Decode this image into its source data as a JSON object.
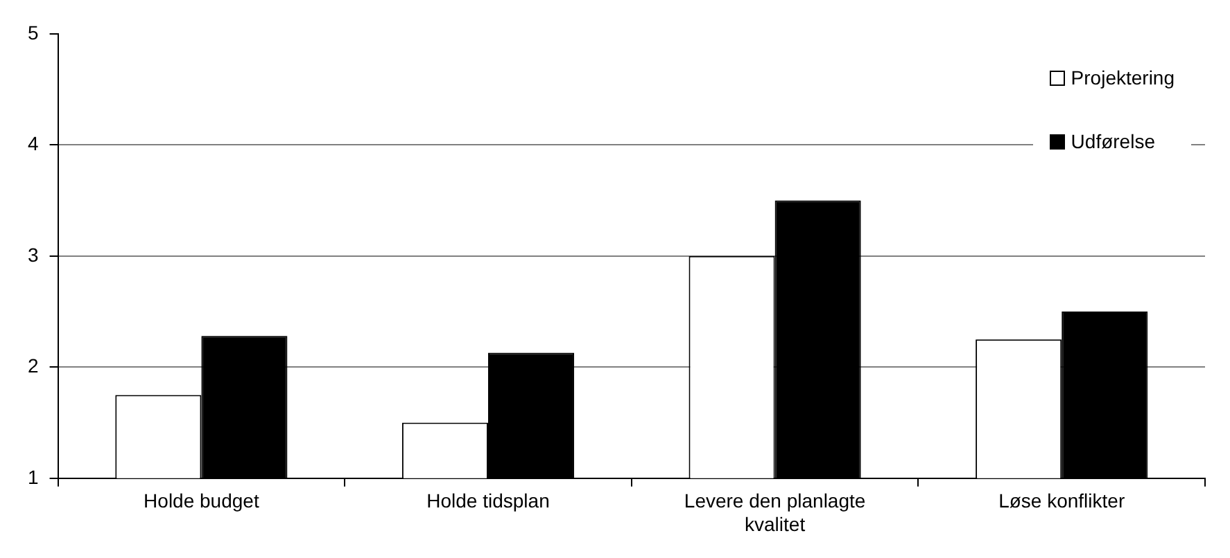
{
  "chart_data": {
    "type": "bar",
    "categories": [
      "Holde budget",
      "Holde tidsplan",
      "Levere den planlagte kvalitet",
      "Løse konflikter"
    ],
    "series": [
      {
        "name": "Projektering",
        "color": "#ffffff",
        "values": [
          1.75,
          1.5,
          3.0,
          2.25
        ]
      },
      {
        "name": "Udførelse",
        "color": "#000000",
        "values": [
          2.28,
          2.13,
          3.5,
          2.5
        ]
      }
    ],
    "ylim": [
      1,
      5
    ],
    "yticks": [
      1,
      2,
      3,
      4,
      5
    ],
    "grid": "y",
    "legend": "top right"
  }
}
